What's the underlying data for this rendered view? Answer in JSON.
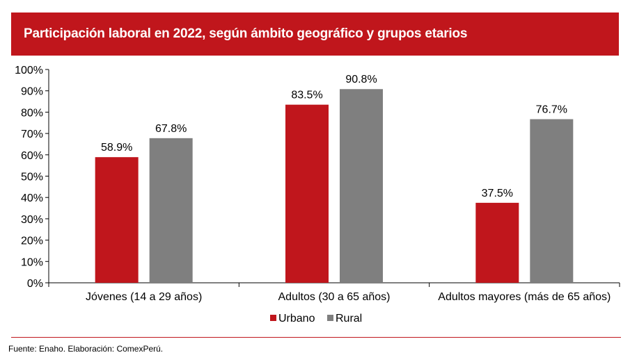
{
  "chart_data": {
    "type": "bar",
    "title": "Participación laboral en 2022, según ámbito geográfico y grupos etarios",
    "categories": [
      "Jóvenes (14 a 29 años)",
      "Adultos (30 a 65 años)",
      "Adultos mayores (más de 65 años)"
    ],
    "series": [
      {
        "name": "Urbano",
        "values": [
          58.9,
          83.5,
          37.5
        ],
        "labels": [
          "58.9%",
          "83.5%",
          "37.5%"
        ],
        "color": "#c0161c"
      },
      {
        "name": "Rural",
        "values": [
          67.8,
          90.8,
          76.7
        ],
        "labels": [
          "67.8%",
          "90.8%",
          "76.7%"
        ],
        "color": "#7f7f7f"
      }
    ],
    "ylim": [
      0,
      100
    ],
    "yticks": [
      "0%",
      "10%",
      "20%",
      "30%",
      "40%",
      "50%",
      "60%",
      "70%",
      "80%",
      "90%",
      "100%"
    ],
    "xlabel": "",
    "ylabel": "",
    "legend_position": "bottom"
  },
  "footer": {
    "source": "Fuente: Enaho. Elaboración: ComexPerú."
  },
  "colors": {
    "accent": "#c0161c",
    "gray": "#7f7f7f"
  }
}
